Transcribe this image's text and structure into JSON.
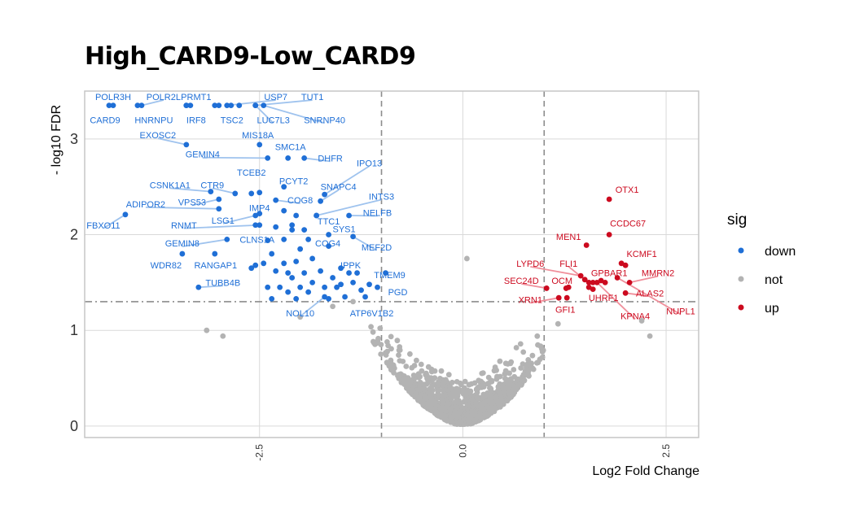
{
  "chart_data": {
    "type": "scatter",
    "title": "High_CARD9-Low_CARD9",
    "xlabel": "Log2 Fold Change",
    "ylabel": "- log10 FDR",
    "xlim": [
      -4.65,
      2.9
    ],
    "ylim": [
      -0.12,
      3.5
    ],
    "xticks": [
      -2.5,
      0.0,
      2.5
    ],
    "xtick_labels": [
      "-2.5",
      "0.0",
      "2.5"
    ],
    "yticks": [
      0,
      1,
      2,
      3
    ],
    "ytick_labels": [
      "0",
      "1",
      "2",
      "3"
    ],
    "grid": true,
    "thresholds": {
      "x": [
        -1,
        1
      ],
      "y": 1.3
    },
    "legend": {
      "title": "sig",
      "position": "right",
      "entries": [
        {
          "label": "down",
          "color": "#1f6fd6"
        },
        {
          "label": "not",
          "color": "#b3b3b3"
        },
        {
          "label": "up",
          "color": "#cc0a1f"
        }
      ]
    },
    "colors": {
      "down": "#1f6fd6",
      "not": "#b3b3b3",
      "up": "#cc0a1f",
      "down_line": "#9fc3ee",
      "up_line": "#f08f9b"
    },
    "series": [
      {
        "name": "down",
        "points": [
          {
            "gene": "POLR3H",
            "x": -4.3,
            "y": 3.35,
            "lx": -4.3,
            "ly": 3.44
          },
          {
            "gene": "POLR2L",
            "x": -3.95,
            "y": 3.35,
            "lx": -3.68,
            "ly": 3.44
          },
          {
            "gene": "PRMT1",
            "x": -3.35,
            "y": 3.35,
            "lx": -3.28,
            "ly": 3.44
          },
          {
            "gene": "CARD9",
            "x": -4.35,
            "y": 3.35,
            "lx": -4.4,
            "ly": 3.2
          },
          {
            "gene": "HNRNPU",
            "x": -4.0,
            "y": 3.35,
            "lx": -3.8,
            "ly": 3.2
          },
          {
            "gene": "IRF8",
            "x": -3.4,
            "y": 3.35,
            "lx": -3.28,
            "ly": 3.2
          },
          {
            "gene": "TSC2",
            "x": -2.85,
            "y": 3.35,
            "lx": -2.84,
            "ly": 3.2
          },
          {
            "gene": "LUC7L3",
            "x": -2.55,
            "y": 3.35,
            "lx": -2.33,
            "ly": 3.2
          },
          {
            "gene": "USP7",
            "x": -2.9,
            "y": 3.35,
            "lx": -2.3,
            "ly": 3.44
          },
          {
            "gene": "TUT1",
            "x": -2.55,
            "y": 3.35,
            "lx": -1.85,
            "ly": 3.44
          },
          {
            "gene": "SNRNP40",
            "x": -2.45,
            "y": 3.35,
            "lx": -1.7,
            "ly": 3.2
          },
          {
            "gene": "EXOSC2",
            "x": -3.4,
            "y": 2.94,
            "lx": -3.75,
            "ly": 3.04
          },
          {
            "gene": "MIS18A",
            "x": -2.5,
            "y": 2.94,
            "lx": -2.52,
            "ly": 3.04
          },
          {
            "gene": "SMC1A",
            "x": -2.15,
            "y": 2.8,
            "lx": -2.12,
            "ly": 2.92
          },
          {
            "gene": "GEMIN4",
            "x": -2.4,
            "y": 2.8,
            "lx": -3.2,
            "ly": 2.84
          },
          {
            "gene": "DHFR",
            "x": -1.95,
            "y": 2.8,
            "lx": -1.63,
            "ly": 2.8
          },
          {
            "gene": "IPO13",
            "x": -1.7,
            "y": 2.42,
            "lx": -1.15,
            "ly": 2.75
          },
          {
            "gene": "TCEB2",
            "x": -2.5,
            "y": 2.44,
            "lx": -2.6,
            "ly": 2.65
          },
          {
            "gene": "PCYT2",
            "x": -2.2,
            "y": 2.5,
            "lx": -2.08,
            "ly": 2.56
          },
          {
            "gene": "SNAPC4",
            "x": -1.75,
            "y": 2.35,
            "lx": -1.53,
            "ly": 2.5
          },
          {
            "gene": "INTS3",
            "x": -1.8,
            "y": 2.2,
            "lx": -1.0,
            "ly": 2.4
          },
          {
            "gene": "CSNK1A1",
            "x": -3.1,
            "y": 2.45,
            "lx": -3.6,
            "ly": 2.52
          },
          {
            "gene": "CTR9",
            "x": -2.8,
            "y": 2.43,
            "lx": -3.08,
            "ly": 2.52
          },
          {
            "gene": "COG8",
            "x": -2.3,
            "y": 2.36,
            "lx": -2.0,
            "ly": 2.36
          },
          {
            "gene": "VPS53",
            "x": -3.0,
            "y": 2.37,
            "lx": -3.33,
            "ly": 2.34
          },
          {
            "gene": "ADIPOR2",
            "x": -3.0,
            "y": 2.27,
            "lx": -3.9,
            "ly": 2.32
          },
          {
            "gene": "IMP4",
            "x": -2.5,
            "y": 2.22,
            "lx": -2.5,
            "ly": 2.28
          },
          {
            "gene": "NELFB",
            "x": -1.4,
            "y": 2.2,
            "lx": -1.05,
            "ly": 2.23
          },
          {
            "gene": "TTC1",
            "x": -1.8,
            "y": 2.2,
            "lx": -1.65,
            "ly": 2.14
          },
          {
            "gene": "LSG1",
            "x": -2.55,
            "y": 2.2,
            "lx": -2.95,
            "ly": 2.15
          },
          {
            "gene": "RNMT",
            "x": -2.5,
            "y": 2.1,
            "lx": -3.43,
            "ly": 2.1
          },
          {
            "gene": "FBXO11",
            "x": -4.15,
            "y": 2.21,
            "lx": -4.42,
            "ly": 2.1
          },
          {
            "gene": "SYS1",
            "x": -1.65,
            "y": 2.0,
            "lx": -1.46,
            "ly": 2.06
          },
          {
            "gene": "CLNS1A",
            "x": -2.4,
            "y": 1.94,
            "lx": -2.53,
            "ly": 1.95
          },
          {
            "gene": "GEMIN8",
            "x": -2.9,
            "y": 1.95,
            "lx": -3.45,
            "ly": 1.91
          },
          {
            "gene": "COG4",
            "x": -1.65,
            "y": 1.88,
            "lx": -1.66,
            "ly": 1.91
          },
          {
            "gene": "MEF2D",
            "x": -1.35,
            "y": 1.98,
            "lx": -1.06,
            "ly": 1.87
          },
          {
            "gene": "WDR82",
            "x": -3.45,
            "y": 1.8,
            "lx": -3.65,
            "ly": 1.68
          },
          {
            "gene": "RANGAP1",
            "x": -3.05,
            "y": 1.8,
            "lx": -3.04,
            "ly": 1.68
          },
          {
            "gene": "IPPK",
            "x": -1.4,
            "y": 1.6,
            "lx": -1.38,
            "ly": 1.68
          },
          {
            "gene": "TMEM9",
            "x": -0.95,
            "y": 1.6,
            "lx": -0.9,
            "ly": 1.58
          },
          {
            "gene": "TUBB4B",
            "x": -3.25,
            "y": 1.45,
            "lx": -2.95,
            "ly": 1.5
          },
          {
            "gene": "PGD",
            "x": -1.05,
            "y": 1.45,
            "lx": -0.8,
            "ly": 1.4
          },
          {
            "gene": "NOL10",
            "x": -1.7,
            "y": 1.35,
            "lx": -2.0,
            "ly": 1.18
          },
          {
            "gene": "ATP6V1B2",
            "x": -1.2,
            "y": 1.35,
            "lx": -1.12,
            "ly": 1.18
          },
          {
            "gene": "",
            "x": -3.4,
            "y": 3.35
          },
          {
            "gene": "",
            "x": -3.05,
            "y": 3.35
          },
          {
            "gene": "",
            "x": -3.0,
            "y": 3.35
          },
          {
            "gene": "",
            "x": -2.75,
            "y": 3.35
          },
          {
            "gene": "",
            "x": -2.6,
            "y": 2.43
          },
          {
            "gene": "",
            "x": -2.55,
            "y": 2.1
          },
          {
            "gene": "",
            "x": -2.3,
            "y": 2.08
          },
          {
            "gene": "",
            "x": -2.1,
            "y": 2.1
          },
          {
            "gene": "",
            "x": -2.2,
            "y": 2.25
          },
          {
            "gene": "",
            "x": -2.05,
            "y": 2.2
          },
          {
            "gene": "",
            "x": -2.1,
            "y": 2.05
          },
          {
            "gene": "",
            "x": -1.95,
            "y": 2.05
          },
          {
            "gene": "",
            "x": -1.9,
            "y": 1.95
          },
          {
            "gene": "",
            "x": -2.2,
            "y": 1.95
          },
          {
            "gene": "",
            "x": -2.0,
            "y": 1.85
          },
          {
            "gene": "",
            "x": -2.35,
            "y": 1.8
          },
          {
            "gene": "",
            "x": -2.45,
            "y": 1.7
          },
          {
            "gene": "",
            "x": -2.2,
            "y": 1.7
          },
          {
            "gene": "",
            "x": -2.05,
            "y": 1.72
          },
          {
            "gene": "",
            "x": -1.85,
            "y": 1.75
          },
          {
            "gene": "",
            "x": -1.75,
            "y": 1.62
          },
          {
            "gene": "",
            "x": -1.95,
            "y": 1.6
          },
          {
            "gene": "",
            "x": -2.15,
            "y": 1.6
          },
          {
            "gene": "",
            "x": -2.3,
            "y": 1.62
          },
          {
            "gene": "",
            "x": -2.55,
            "y": 1.68
          },
          {
            "gene": "",
            "x": -2.6,
            "y": 1.65
          },
          {
            "gene": "",
            "x": -1.6,
            "y": 1.55
          },
          {
            "gene": "",
            "x": -1.5,
            "y": 1.48
          },
          {
            "gene": "",
            "x": -1.7,
            "y": 1.45
          },
          {
            "gene": "",
            "x": -1.85,
            "y": 1.5
          },
          {
            "gene": "",
            "x": -2.0,
            "y": 1.45
          },
          {
            "gene": "",
            "x": -2.25,
            "y": 1.45
          },
          {
            "gene": "",
            "x": -2.4,
            "y": 1.45
          },
          {
            "gene": "",
            "x": -2.15,
            "y": 1.4
          },
          {
            "gene": "",
            "x": -1.9,
            "y": 1.4
          },
          {
            "gene": "",
            "x": -1.55,
            "y": 1.45
          },
          {
            "gene": "",
            "x": -1.35,
            "y": 1.5
          },
          {
            "gene": "",
            "x": -1.25,
            "y": 1.42
          },
          {
            "gene": "",
            "x": -1.15,
            "y": 1.48
          },
          {
            "gene": "",
            "x": -1.45,
            "y": 1.35
          },
          {
            "gene": "",
            "x": -1.65,
            "y": 1.33
          },
          {
            "gene": "",
            "x": -2.05,
            "y": 1.33
          },
          {
            "gene": "",
            "x": -2.35,
            "y": 1.33
          },
          {
            "gene": "",
            "x": -1.3,
            "y": 1.6
          },
          {
            "gene": "",
            "x": -1.5,
            "y": 1.65
          },
          {
            "gene": "",
            "x": -2.1,
            "y": 1.55
          }
        ]
      },
      {
        "name": "up",
        "points": [
          {
            "gene": "OTX1",
            "x": 1.8,
            "y": 2.37,
            "lx": 2.02,
            "ly": 2.47
          },
          {
            "gene": "CCDC67",
            "x": 1.8,
            "y": 2.0,
            "lx": 2.03,
            "ly": 2.12
          },
          {
            "gene": "MEN1",
            "x": 1.52,
            "y": 1.89,
            "lx": 1.3,
            "ly": 1.98
          },
          {
            "gene": "KCMF1",
            "x": 2.0,
            "y": 1.68,
            "lx": 2.2,
            "ly": 1.8
          },
          {
            "gene": "LYPD6",
            "x": 1.45,
            "y": 1.57,
            "lx": 0.83,
            "ly": 1.7
          },
          {
            "gene": "FLI1",
            "x": 1.5,
            "y": 1.53,
            "lx": 1.3,
            "ly": 1.7
          },
          {
            "gene": "GPBAR1",
            "x": 1.6,
            "y": 1.5,
            "lx": 1.8,
            "ly": 1.6
          },
          {
            "gene": "MMRN2",
            "x": 2.05,
            "y": 1.5,
            "lx": 2.4,
            "ly": 1.6
          },
          {
            "gene": "SEC24D",
            "x": 1.03,
            "y": 1.44,
            "lx": 0.72,
            "ly": 1.52
          },
          {
            "gene": "OCM",
            "x": 1.27,
            "y": 1.44,
            "lx": 1.22,
            "ly": 1.52
          },
          {
            "gene": "ALAS2",
            "x": 2.0,
            "y": 1.39,
            "lx": 2.3,
            "ly": 1.39
          },
          {
            "gene": "XRN1",
            "x": 1.18,
            "y": 1.34,
            "lx": 0.83,
            "ly": 1.32
          },
          {
            "gene": "UHRF1",
            "x": 1.55,
            "y": 1.45,
            "lx": 1.73,
            "ly": 1.34
          },
          {
            "gene": "GFI1",
            "x": 1.28,
            "y": 1.34,
            "lx": 1.26,
            "ly": 1.22
          },
          {
            "gene": "KPNA4",
            "x": 1.65,
            "y": 1.5,
            "lx": 2.12,
            "ly": 1.15
          },
          {
            "gene": "NUPL1",
            "x": 1.9,
            "y": 1.55,
            "lx": 2.68,
            "ly": 1.2
          },
          {
            "gene": "",
            "x": 1.95,
            "y": 1.7
          },
          {
            "gene": "",
            "x": 1.55,
            "y": 1.5
          },
          {
            "gene": "",
            "x": 1.7,
            "y": 1.52
          },
          {
            "gene": "",
            "x": 1.75,
            "y": 1.5
          },
          {
            "gene": "",
            "x": 1.3,
            "y": 1.45
          },
          {
            "gene": "",
            "x": 1.6,
            "y": 1.43
          }
        ]
      }
    ]
  }
}
